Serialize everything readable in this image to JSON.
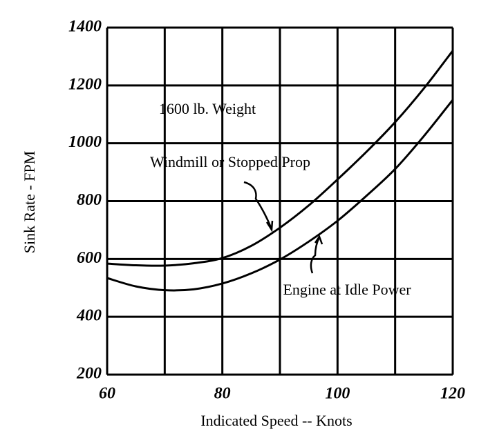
{
  "chart_data": {
    "type": "line",
    "x_label": "Indicated Speed  --  Knots",
    "y_label": "Sink Rate  -  FPM",
    "annotation": "1600 lb. Weight",
    "x": [
      60,
      65,
      70,
      75,
      80,
      85,
      90,
      95,
      100,
      105,
      110,
      115,
      120
    ],
    "series": [
      {
        "name": "Windmill or Stopped Prop",
        "color": "#000000",
        "values": [
          584,
          578,
          577,
          585,
          603,
          645,
          708,
          785,
          875,
          970,
          1073,
          1190,
          1320
        ]
      },
      {
        "name": "Engine at Idle Power",
        "color": "#000000",
        "values": [
          534,
          505,
          492,
          495,
          515,
          550,
          598,
          660,
          732,
          818,
          911,
          1025,
          1150
        ]
      }
    ],
    "xlim": [
      60,
      120
    ],
    "xticks": [
      60,
      80,
      100,
      120
    ],
    "x_grid": [
      60,
      70,
      80,
      90,
      100,
      110,
      120
    ],
    "ylim": [
      200,
      1400
    ],
    "yticks": [
      200,
      400,
      600,
      800,
      1000,
      1200,
      1400
    ],
    "grid": true
  }
}
